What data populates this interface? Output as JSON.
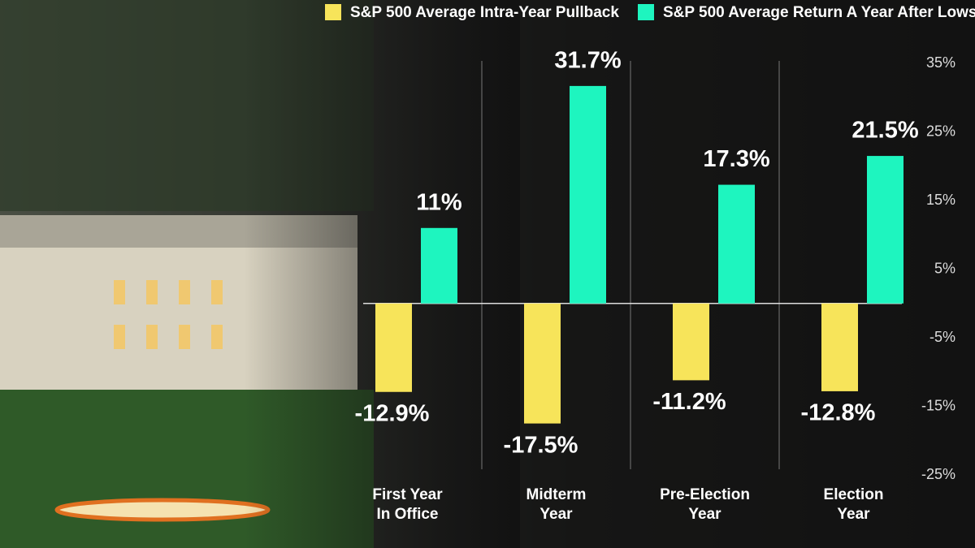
{
  "chart_data": {
    "type": "bar",
    "categories": [
      "First Year\nIn Office",
      "Midterm\nYear",
      "Pre-Election\nYear",
      "Election\nYear"
    ],
    "series": [
      {
        "name": "S&P 500 Average Intra-Year Pullback",
        "color": "#f7e45a",
        "values": [
          -12.9,
          -17.5,
          -11.2,
          -12.8
        ],
        "value_labels": [
          "-12.9%",
          "-17.5%",
          "-11.2%",
          "-12.8%"
        ]
      },
      {
        "name": "S&P 500 Average Return A Year After Lows",
        "color": "#1ef5bf",
        "values": [
          11,
          31.7,
          17.3,
          21.5
        ],
        "value_labels": [
          "11%",
          "31.7%",
          "17.3%",
          "21.5%"
        ]
      }
    ],
    "ylim": [
      -25,
      35
    ],
    "yticks": [
      {
        "value": 35,
        "label": "35%"
      },
      {
        "value": 25,
        "label": "25%"
      },
      {
        "value": 15,
        "label": "15%"
      },
      {
        "value": 5,
        "label": "5%"
      },
      {
        "value": -5,
        "label": "-5%"
      },
      {
        "value": -15,
        "label": "-15%"
      },
      {
        "value": -25,
        "label": "-25%"
      }
    ],
    "legend": "top"
  }
}
